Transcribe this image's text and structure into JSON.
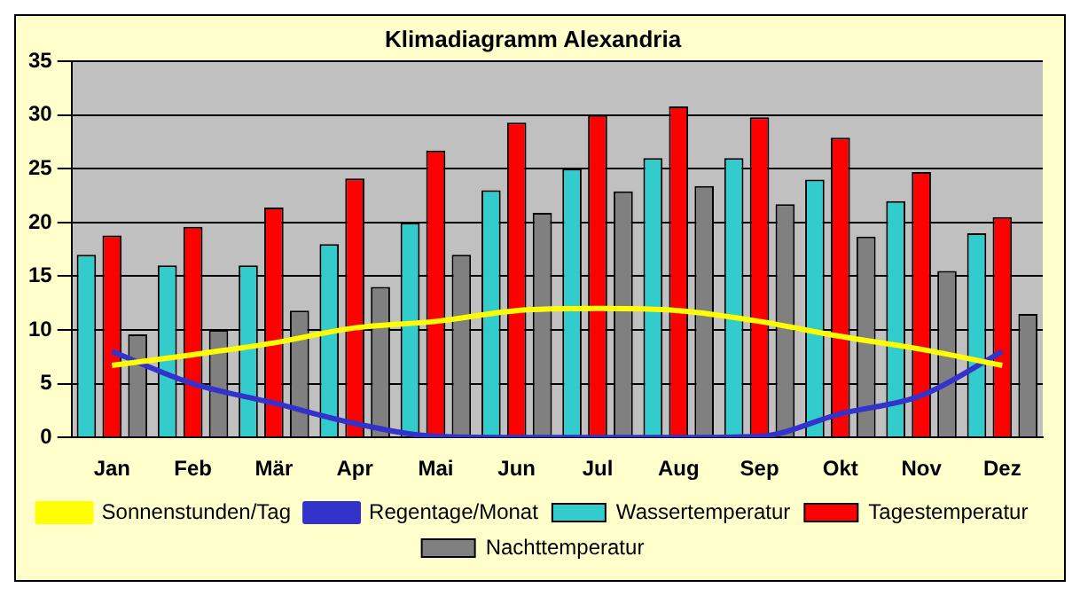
{
  "chart_data": {
    "type": "bar",
    "title": "Klimadiagramm Alexandria",
    "categories": [
      "Jan",
      "Feb",
      "Mär",
      "Apr",
      "Mai",
      "Jun",
      "Jul",
      "Aug",
      "Sep",
      "Okt",
      "Nov",
      "Dez"
    ],
    "series": [
      {
        "name": "Wassertemperatur",
        "color": "#33cccc",
        "values": [
          17,
          16,
          16,
          18,
          20,
          23,
          25,
          26,
          26,
          24,
          22,
          19
        ]
      },
      {
        "name": "Tagestemperatur",
        "color": "#ff0000",
        "values": [
          18.8,
          19.6,
          21.4,
          24.1,
          26.7,
          29.3,
          30,
          30.8,
          29.8,
          27.9,
          24.7,
          20.5
        ]
      },
      {
        "name": "Nachttemperatur",
        "color": "#808080",
        "values": [
          9.6,
          10,
          11.8,
          14,
          17,
          20.9,
          22.9,
          23.4,
          21.7,
          18.7,
          15.5,
          11.5
        ]
      },
      {
        "name": "Sonnenstunden/Tag",
        "type": "line",
        "color": "#ffff00",
        "values": [
          6.7,
          7.7,
          8.8,
          10.2,
          10.8,
          11.8,
          12,
          11.8,
          10.8,
          9.4,
          8.2,
          6.7
        ]
      },
      {
        "name": "Regentage/Monat",
        "type": "line",
        "color": "#3333cc",
        "values": [
          8,
          5,
          3.2,
          1.3,
          0.1,
          0,
          0,
          0,
          0.1,
          2.2,
          3.9,
          8
        ]
      }
    ],
    "ylim": [
      0,
      35
    ],
    "yticks": [
      0,
      5,
      10,
      15,
      20,
      25,
      30,
      35
    ],
    "grid": "y",
    "legend": "bottom",
    "marker": "none"
  }
}
